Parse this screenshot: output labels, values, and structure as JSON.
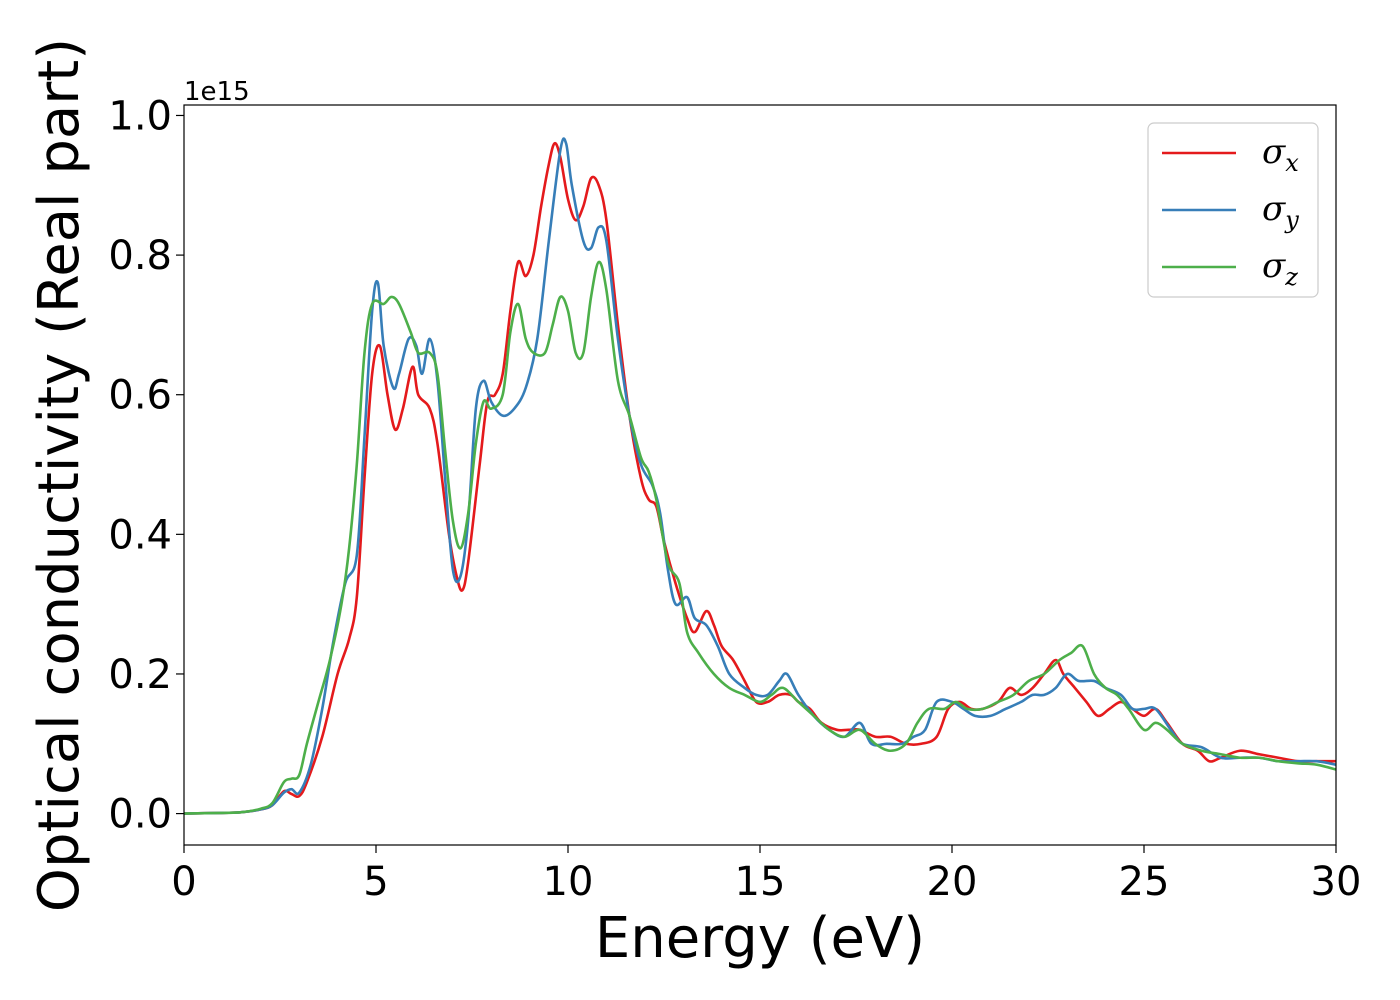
{
  "chart_data": {
    "type": "line",
    "xlabel": "Energy (eV)",
    "ylabel": "Optical conductivity (Real part)",
    "y_offset_text": "1e15",
    "xlim": [
      0,
      30
    ],
    "ylim": [
      -0.045,
      1.015
    ],
    "x_ticks": [
      0,
      5,
      10,
      15,
      20,
      25,
      30
    ],
    "x_tick_labels": [
      "0",
      "5",
      "10",
      "15",
      "20",
      "25",
      "30"
    ],
    "y_ticks": [
      0.0,
      0.2,
      0.4,
      0.6,
      0.8,
      1.0
    ],
    "y_tick_labels": [
      "0.0",
      "0.2",
      "0.4",
      "0.6",
      "0.8",
      "1.0"
    ],
    "grid": false,
    "legend_position": "top-right",
    "series": [
      {
        "name": "σx",
        "symbol": "σ",
        "subscript": "x",
        "color": "#e41a1c",
        "points": [
          [
            0,
            0
          ],
          [
            1,
            0.001
          ],
          [
            1.5,
            0.002
          ],
          [
            2,
            0.006
          ],
          [
            2.3,
            0.012
          ],
          [
            2.6,
            0.032
          ],
          [
            2.8,
            0.028
          ],
          [
            3,
            0.025
          ],
          [
            3.2,
            0.045
          ],
          [
            3.6,
            0.11
          ],
          [
            4,
            0.2
          ],
          [
            4.3,
            0.25
          ],
          [
            4.5,
            0.31
          ],
          [
            4.7,
            0.48
          ],
          [
            4.9,
            0.63
          ],
          [
            5.1,
            0.67
          ],
          [
            5.3,
            0.6
          ],
          [
            5.5,
            0.55
          ],
          [
            5.7,
            0.58
          ],
          [
            5.95,
            0.64
          ],
          [
            6.1,
            0.6
          ],
          [
            6.4,
            0.58
          ],
          [
            6.6,
            0.53
          ],
          [
            6.9,
            0.4
          ],
          [
            7.1,
            0.34
          ],
          [
            7.25,
            0.32
          ],
          [
            7.4,
            0.36
          ],
          [
            7.7,
            0.5
          ],
          [
            7.9,
            0.59
          ],
          [
            8.1,
            0.6
          ],
          [
            8.3,
            0.63
          ],
          [
            8.5,
            0.72
          ],
          [
            8.7,
            0.79
          ],
          [
            8.9,
            0.77
          ],
          [
            9.1,
            0.8
          ],
          [
            9.3,
            0.87
          ],
          [
            9.5,
            0.93
          ],
          [
            9.65,
            0.96
          ],
          [
            9.8,
            0.94
          ],
          [
            10,
            0.88
          ],
          [
            10.2,
            0.85
          ],
          [
            10.4,
            0.87
          ],
          [
            10.6,
            0.91
          ],
          [
            10.8,
            0.9
          ],
          [
            11,
            0.85
          ],
          [
            11.3,
            0.7
          ],
          [
            11.6,
            0.57
          ],
          [
            11.9,
            0.48
          ],
          [
            12.1,
            0.45
          ],
          [
            12.3,
            0.44
          ],
          [
            12.5,
            0.39
          ],
          [
            12.8,
            0.33
          ],
          [
            13.1,
            0.28
          ],
          [
            13.3,
            0.26
          ],
          [
            13.6,
            0.29
          ],
          [
            13.8,
            0.27
          ],
          [
            14,
            0.24
          ],
          [
            14.3,
            0.22
          ],
          [
            14.6,
            0.19
          ],
          [
            14.9,
            0.16
          ],
          [
            15.2,
            0.16
          ],
          [
            15.5,
            0.17
          ],
          [
            15.8,
            0.17
          ],
          [
            16,
            0.16
          ],
          [
            16.3,
            0.15
          ],
          [
            16.6,
            0.13
          ],
          [
            17,
            0.12
          ],
          [
            17.3,
            0.12
          ],
          [
            17.6,
            0.12
          ],
          [
            18,
            0.11
          ],
          [
            18.4,
            0.11
          ],
          [
            18.8,
            0.1
          ],
          [
            19.2,
            0.1
          ],
          [
            19.6,
            0.11
          ],
          [
            19.9,
            0.15
          ],
          [
            20.2,
            0.16
          ],
          [
            20.5,
            0.15
          ],
          [
            20.8,
            0.15
          ],
          [
            21.2,
            0.16
          ],
          [
            21.5,
            0.18
          ],
          [
            21.8,
            0.17
          ],
          [
            22.1,
            0.18
          ],
          [
            22.4,
            0.2
          ],
          [
            22.7,
            0.22
          ],
          [
            22.9,
            0.2
          ],
          [
            23.2,
            0.18
          ],
          [
            23.5,
            0.16
          ],
          [
            23.8,
            0.14
          ],
          [
            24.1,
            0.15
          ],
          [
            24.4,
            0.16
          ],
          [
            24.7,
            0.15
          ],
          [
            25,
            0.14
          ],
          [
            25.3,
            0.15
          ],
          [
            25.6,
            0.13
          ],
          [
            26,
            0.1
          ],
          [
            26.4,
            0.09
          ],
          [
            26.7,
            0.075
          ],
          [
            27,
            0.08
          ],
          [
            27.5,
            0.09
          ],
          [
            28,
            0.085
          ],
          [
            28.5,
            0.08
          ],
          [
            29,
            0.075
          ],
          [
            29.5,
            0.075
          ],
          [
            30,
            0.075
          ]
        ]
      },
      {
        "name": "σy",
        "symbol": "σ",
        "subscript": "y",
        "color": "#377eb8",
        "points": [
          [
            0,
            0
          ],
          [
            1,
            0.001
          ],
          [
            1.5,
            0.002
          ],
          [
            2,
            0.006
          ],
          [
            2.3,
            0.012
          ],
          [
            2.6,
            0.03
          ],
          [
            2.8,
            0.035
          ],
          [
            3,
            0.03
          ],
          [
            3.3,
            0.07
          ],
          [
            3.6,
            0.15
          ],
          [
            3.9,
            0.25
          ],
          [
            4.2,
            0.33
          ],
          [
            4.5,
            0.37
          ],
          [
            4.7,
            0.54
          ],
          [
            4.9,
            0.72
          ],
          [
            5.05,
            0.76
          ],
          [
            5.2,
            0.67
          ],
          [
            5.45,
            0.61
          ],
          [
            5.6,
            0.63
          ],
          [
            5.85,
            0.68
          ],
          [
            6.05,
            0.67
          ],
          [
            6.2,
            0.63
          ],
          [
            6.4,
            0.68
          ],
          [
            6.6,
            0.62
          ],
          [
            6.8,
            0.48
          ],
          [
            7,
            0.35
          ],
          [
            7.2,
            0.34
          ],
          [
            7.4,
            0.42
          ],
          [
            7.6,
            0.58
          ],
          [
            7.8,
            0.62
          ],
          [
            8,
            0.59
          ],
          [
            8.3,
            0.57
          ],
          [
            8.6,
            0.58
          ],
          [
            8.9,
            0.61
          ],
          [
            9.2,
            0.68
          ],
          [
            9.5,
            0.82
          ],
          [
            9.8,
            0.95
          ],
          [
            9.95,
            0.96
          ],
          [
            10.1,
            0.9
          ],
          [
            10.4,
            0.82
          ],
          [
            10.6,
            0.81
          ],
          [
            10.8,
            0.84
          ],
          [
            11,
            0.82
          ],
          [
            11.3,
            0.68
          ],
          [
            11.6,
            0.57
          ],
          [
            11.9,
            0.5
          ],
          [
            12.2,
            0.47
          ],
          [
            12.4,
            0.43
          ],
          [
            12.6,
            0.35
          ],
          [
            12.8,
            0.3
          ],
          [
            13.1,
            0.31
          ],
          [
            13.3,
            0.28
          ],
          [
            13.6,
            0.27
          ],
          [
            13.9,
            0.24
          ],
          [
            14.2,
            0.2
          ],
          [
            14.6,
            0.18
          ],
          [
            14.9,
            0.17
          ],
          [
            15.2,
            0.17
          ],
          [
            15.5,
            0.19
          ],
          [
            15.7,
            0.2
          ],
          [
            16,
            0.17
          ],
          [
            16.4,
            0.14
          ],
          [
            16.8,
            0.12
          ],
          [
            17.2,
            0.11
          ],
          [
            17.6,
            0.13
          ],
          [
            17.9,
            0.1
          ],
          [
            18.3,
            0.1
          ],
          [
            18.7,
            0.1
          ],
          [
            19,
            0.11
          ],
          [
            19.3,
            0.12
          ],
          [
            19.6,
            0.16
          ],
          [
            20,
            0.16
          ],
          [
            20.3,
            0.15
          ],
          [
            20.6,
            0.14
          ],
          [
            21,
            0.14
          ],
          [
            21.4,
            0.15
          ],
          [
            21.8,
            0.16
          ],
          [
            22.1,
            0.17
          ],
          [
            22.4,
            0.17
          ],
          [
            22.7,
            0.18
          ],
          [
            23,
            0.2
          ],
          [
            23.3,
            0.19
          ],
          [
            23.7,
            0.19
          ],
          [
            24,
            0.18
          ],
          [
            24.4,
            0.17
          ],
          [
            24.7,
            0.15
          ],
          [
            25,
            0.15
          ],
          [
            25.3,
            0.15
          ],
          [
            25.7,
            0.12
          ],
          [
            26,
            0.1
          ],
          [
            26.5,
            0.095
          ],
          [
            27,
            0.08
          ],
          [
            27.5,
            0.08
          ],
          [
            28,
            0.08
          ],
          [
            28.5,
            0.075
          ],
          [
            29,
            0.075
          ],
          [
            29.5,
            0.075
          ],
          [
            30,
            0.07
          ]
        ]
      },
      {
        "name": "σz",
        "symbol": "σ",
        "subscript": "z",
        "color": "#4daf4a",
        "points": [
          [
            0,
            0
          ],
          [
            1,
            0.001
          ],
          [
            1.5,
            0.002
          ],
          [
            2,
            0.007
          ],
          [
            2.3,
            0.015
          ],
          [
            2.6,
            0.045
          ],
          [
            2.8,
            0.05
          ],
          [
            3,
            0.055
          ],
          [
            3.2,
            0.1
          ],
          [
            3.5,
            0.16
          ],
          [
            3.8,
            0.22
          ],
          [
            4.1,
            0.3
          ],
          [
            4.3,
            0.38
          ],
          [
            4.5,
            0.5
          ],
          [
            4.7,
            0.66
          ],
          [
            4.9,
            0.73
          ],
          [
            5.2,
            0.73
          ],
          [
            5.4,
            0.74
          ],
          [
            5.6,
            0.73
          ],
          [
            5.9,
            0.69
          ],
          [
            6.1,
            0.66
          ],
          [
            6.4,
            0.66
          ],
          [
            6.6,
            0.63
          ],
          [
            6.8,
            0.52
          ],
          [
            7,
            0.42
          ],
          [
            7.2,
            0.38
          ],
          [
            7.4,
            0.43
          ],
          [
            7.6,
            0.53
          ],
          [
            7.8,
            0.59
          ],
          [
            8,
            0.58
          ],
          [
            8.3,
            0.6
          ],
          [
            8.5,
            0.69
          ],
          [
            8.7,
            0.73
          ],
          [
            8.9,
            0.68
          ],
          [
            9.1,
            0.66
          ],
          [
            9.4,
            0.66
          ],
          [
            9.6,
            0.7
          ],
          [
            9.8,
            0.74
          ],
          [
            10,
            0.72
          ],
          [
            10.2,
            0.66
          ],
          [
            10.4,
            0.66
          ],
          [
            10.6,
            0.74
          ],
          [
            10.8,
            0.79
          ],
          [
            11,
            0.75
          ],
          [
            11.3,
            0.62
          ],
          [
            11.6,
            0.57
          ],
          [
            11.9,
            0.51
          ],
          [
            12.1,
            0.49
          ],
          [
            12.3,
            0.45
          ],
          [
            12.6,
            0.36
          ],
          [
            12.9,
            0.33
          ],
          [
            13.1,
            0.26
          ],
          [
            13.4,
            0.23
          ],
          [
            13.8,
            0.2
          ],
          [
            14.2,
            0.18
          ],
          [
            14.6,
            0.17
          ],
          [
            15,
            0.16
          ],
          [
            15.3,
            0.17
          ],
          [
            15.6,
            0.18
          ],
          [
            16,
            0.16
          ],
          [
            16.4,
            0.14
          ],
          [
            16.8,
            0.12
          ],
          [
            17.2,
            0.11
          ],
          [
            17.6,
            0.12
          ],
          [
            18,
            0.1
          ],
          [
            18.4,
            0.09
          ],
          [
            18.8,
            0.1
          ],
          [
            19.1,
            0.13
          ],
          [
            19.4,
            0.15
          ],
          [
            19.8,
            0.15
          ],
          [
            20.1,
            0.16
          ],
          [
            20.4,
            0.15
          ],
          [
            20.8,
            0.15
          ],
          [
            21.2,
            0.16
          ],
          [
            21.6,
            0.17
          ],
          [
            22,
            0.19
          ],
          [
            22.4,
            0.2
          ],
          [
            22.8,
            0.22
          ],
          [
            23.1,
            0.23
          ],
          [
            23.4,
            0.24
          ],
          [
            23.7,
            0.2
          ],
          [
            24,
            0.18
          ],
          [
            24.3,
            0.17
          ],
          [
            24.6,
            0.15
          ],
          [
            25,
            0.12
          ],
          [
            25.3,
            0.13
          ],
          [
            25.6,
            0.12
          ],
          [
            26,
            0.1
          ],
          [
            26.5,
            0.09
          ],
          [
            27,
            0.085
          ],
          [
            27.5,
            0.08
          ],
          [
            28,
            0.08
          ],
          [
            28.5,
            0.075
          ],
          [
            29,
            0.072
          ],
          [
            29.5,
            0.07
          ],
          [
            30,
            0.063
          ]
        ]
      }
    ]
  }
}
